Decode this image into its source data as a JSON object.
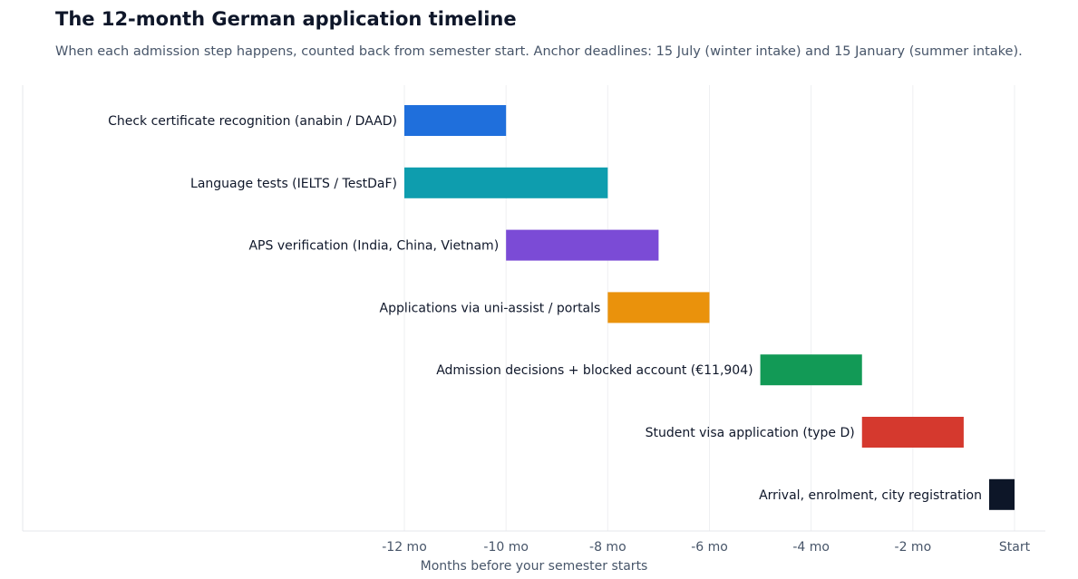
{
  "title": "The 12-month German application timeline",
  "subtitle": "When each admission step happens, counted back from semester start. Anchor deadlines: 15 July (winter intake) and 15 January (summer intake).",
  "chart_data": {
    "type": "bar",
    "orientation": "horizontal-range",
    "xlabel": "Months before your semester starts",
    "xlim": [
      -12,
      0
    ],
    "xticks": [
      {
        "value": -12,
        "label": "-12 mo"
      },
      {
        "value": -10,
        "label": "-10 mo"
      },
      {
        "value": -8,
        "label": "-8 mo"
      },
      {
        "value": -6,
        "label": "-6 mo"
      },
      {
        "value": -4,
        "label": "-4 mo"
      },
      {
        "value": -2,
        "label": "-2 mo"
      },
      {
        "value": 0,
        "label": "Start"
      }
    ],
    "grid": "vertical",
    "tasks": [
      {
        "label": "Check certificate recognition (anabin / DAAD)",
        "start": -12,
        "end": -10,
        "color": "#1f6fdc"
      },
      {
        "label": "Language tests (IELTS / TestDaF)",
        "start": -12,
        "end": -8,
        "color": "#0e9dae"
      },
      {
        "label": "APS verification (India, China, Vietnam)",
        "start": -10,
        "end": -7,
        "color": "#7b4bd6"
      },
      {
        "label": "Applications via uni-assist / portals",
        "start": -8,
        "end": -6,
        "color": "#ea920c"
      },
      {
        "label": "Admission decisions + blocked account (€11,904)",
        "start": -5,
        "end": -3,
        "color": "#129a56"
      },
      {
        "label": "Student visa application (type D)",
        "start": -3,
        "end": -1,
        "color": "#d5392e"
      },
      {
        "label": "Arrival, enrolment, city registration",
        "start": -0.5,
        "end": 0,
        "color": "#0d1628"
      }
    ]
  }
}
